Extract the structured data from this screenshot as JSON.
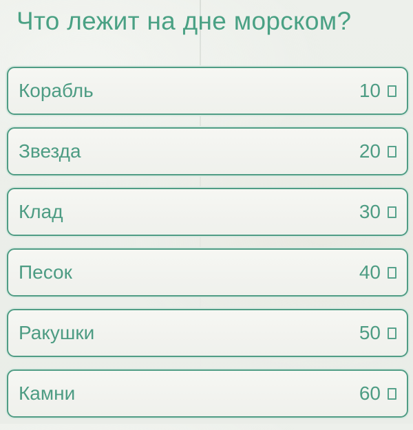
{
  "game": {
    "question": "Что лежит на дне морском?",
    "answers": [
      {
        "label": "Корабль",
        "points": "10"
      },
      {
        "label": "Звезда",
        "points": "20"
      },
      {
        "label": "Клад",
        "points": "30"
      },
      {
        "label": "Песок",
        "points": "40"
      },
      {
        "label": "Ракушки",
        "points": "50"
      },
      {
        "label": "Камни",
        "points": "60"
      }
    ],
    "points_icon": "coin-placeholder-box",
    "colors": {
      "accent_text": "#4aa184",
      "button_border": "#4f9c84",
      "button_halo": "#dbeae2",
      "button_background": "#f3f4f0",
      "page_background": "#ecefea"
    }
  }
}
